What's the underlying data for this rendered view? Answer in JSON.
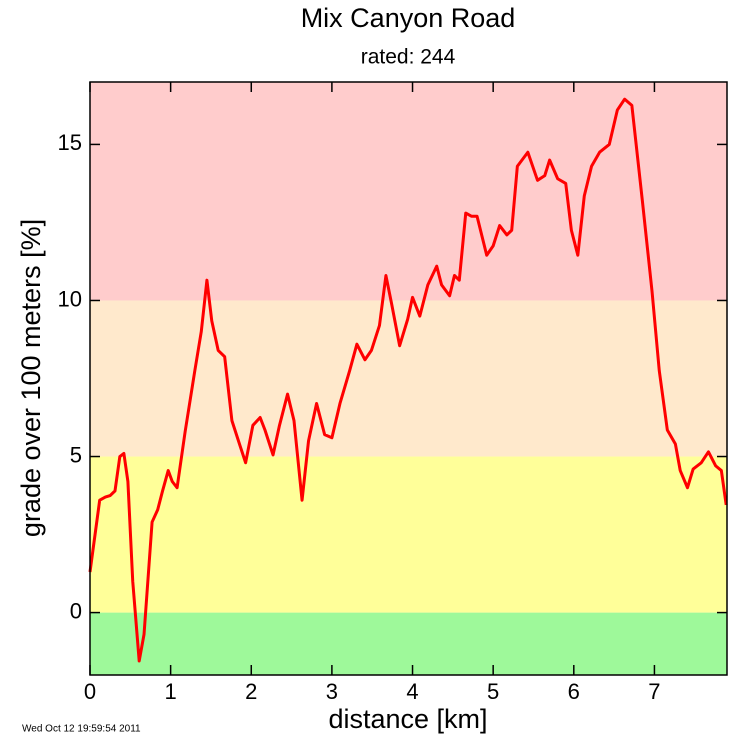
{
  "chart_data": {
    "type": "line",
    "title": "Mix Canyon Road",
    "subtitle": "rated: 244",
    "xlabel": "distance [km]",
    "ylabel": "grade over 100 meters [%]",
    "footer": "Wed Oct 12 19:59:54 2011",
    "color": "#ff0000",
    "xlim": [
      0,
      7.9
    ],
    "ylim": [
      -2,
      17
    ],
    "xticks": [
      0,
      1,
      2,
      3,
      4,
      5,
      6,
      7
    ],
    "yticks": [
      0,
      5,
      10,
      15
    ],
    "bands": [
      {
        "from": -2,
        "to": 0,
        "color": "#9ef99a"
      },
      {
        "from": 0,
        "to": 5,
        "color": "#ffff99"
      },
      {
        "from": 5,
        "to": 10,
        "color": "#ffe9cc"
      },
      {
        "from": 10,
        "to": 17,
        "color": "#ffcccc"
      }
    ],
    "x": [
      0,
      0.12,
      0.19,
      0.25,
      0.31,
      0.37,
      0.42,
      0.47,
      0.53,
      0.61,
      0.67,
      0.77,
      0.84,
      0.9,
      0.97,
      1.02,
      1.08,
      1.18,
      1.3,
      1.38,
      1.45,
      1.51,
      1.59,
      1.67,
      1.76,
      1.86,
      1.93,
      2.02,
      2.11,
      2.17,
      2.27,
      2.35,
      2.45,
      2.53,
      2.63,
      2.71,
      2.81,
      2.91,
      3.0,
      3.1,
      3.22,
      3.31,
      3.41,
      3.49,
      3.59,
      3.67,
      3.74,
      3.84,
      3.94,
      4.0,
      4.09,
      4.19,
      4.3,
      4.36,
      4.46,
      4.52,
      4.58,
      4.66,
      4.73,
      4.8,
      4.92,
      5.0,
      5.08,
      5.17,
      5.23,
      5.3,
      5.43,
      5.55,
      5.64,
      5.7,
      5.8,
      5.9,
      5.97,
      6.05,
      6.13,
      6.22,
      6.32,
      6.44,
      6.54,
      6.63,
      6.72,
      6.85,
      6.97,
      7.06,
      7.16,
      7.26,
      7.32,
      7.41,
      7.48,
      7.58,
      7.67,
      7.76,
      7.83,
      7.89
    ],
    "values": [
      1.3,
      3.6,
      3.7,
      3.75,
      3.9,
      5.0,
      5.1,
      4.2,
      1.0,
      -1.55,
      -0.7,
      2.9,
      3.3,
      3.9,
      4.55,
      4.2,
      4.0,
      5.8,
      7.75,
      9.0,
      10.65,
      9.35,
      8.4,
      8.2,
      6.15,
      5.35,
      4.8,
      6.0,
      6.25,
      5.85,
      5.05,
      6.0,
      7.0,
      6.15,
      3.6,
      5.5,
      6.7,
      5.7,
      5.6,
      6.7,
      7.75,
      8.6,
      8.1,
      8.4,
      9.2,
      10.8,
      9.9,
      8.55,
      9.4,
      10.1,
      9.5,
      10.5,
      11.1,
      10.5,
      10.15,
      10.8,
      10.65,
      12.8,
      12.7,
      12.7,
      11.45,
      11.75,
      12.4,
      12.1,
      12.25,
      14.3,
      14.75,
      13.85,
      14.0,
      14.5,
      13.9,
      13.75,
      12.25,
      11.45,
      13.35,
      14.3,
      14.75,
      15.0,
      16.1,
      16.45,
      16.25,
      13.2,
      10.3,
      7.75,
      5.85,
      5.4,
      4.55,
      4.0,
      4.6,
      4.8,
      5.15,
      4.7,
      4.55,
      3.45
    ]
  }
}
